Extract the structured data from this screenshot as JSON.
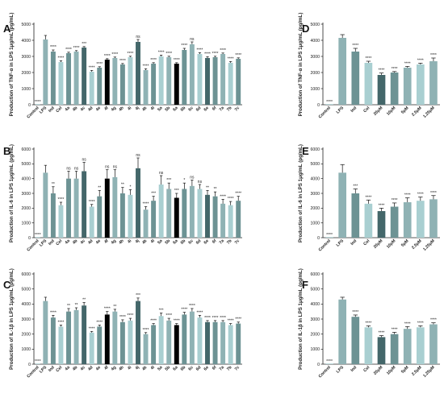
{
  "colors": {
    "lightest": "#a9cfd1",
    "light": "#8fb2b4",
    "mid": "#6d9394",
    "dark": "#44676a",
    "black": "#000000"
  },
  "chart_data": [
    {
      "panel": "A",
      "type": "bar",
      "ylabel": "Production of TNF-α in LPS 1μg/mL (pg/mL)",
      "ylim": [
        0,
        5000
      ],
      "yticks": [
        0,
        1000,
        2000,
        3000,
        4000,
        5000
      ],
      "categories": [
        "Control",
        "LPS",
        "Ind",
        "Cel",
        "4a",
        "4b",
        "4c",
        "4d",
        "4e",
        "4f",
        "4g",
        "4h",
        "4i",
        "4j",
        "4k",
        "4l",
        "5a",
        "5b",
        "6a",
        "6b",
        "6c",
        "6d",
        "6e",
        "6f",
        "7a",
        "7b",
        "7c"
      ],
      "values": [
        0,
        4050,
        3300,
        2650,
        3200,
        3300,
        3550,
        2050,
        2300,
        2800,
        2900,
        2500,
        2950,
        3900,
        2150,
        2550,
        3000,
        2950,
        2550,
        3400,
        3750,
        3150,
        2900,
        2950,
        3150,
        2600,
        2850
      ],
      "errors": [
        0,
        250,
        100,
        80,
        60,
        60,
        60,
        80,
        60,
        60,
        60,
        60,
        60,
        150,
        80,
        60,
        80,
        60,
        60,
        100,
        150,
        80,
        80,
        60,
        60,
        80,
        60
      ],
      "significance": [
        "****",
        "",
        "****",
        "****",
        "****",
        "****",
        "***",
        "****",
        "****",
        "****",
        "****",
        "****",
        "****",
        "ns",
        "****",
        "****",
        "****",
        "****",
        "****",
        "****",
        "ns",
        "****",
        "****",
        "****",
        "****",
        "****",
        "****"
      ]
    },
    {
      "panel": "B",
      "type": "bar",
      "ylabel": "Production of IL-6 in LPS 1μg/mL (pg/mL)",
      "ylim": [
        0,
        6000
      ],
      "yticks": [
        0,
        1000,
        2000,
        3000,
        4000,
        5000,
        6000
      ],
      "categories": [
        "Control",
        "LPS",
        "Ind",
        "Cel",
        "4a",
        "4b",
        "4c",
        "4d",
        "4e",
        "4f",
        "4g",
        "4h",
        "4i",
        "4j",
        "4k",
        "4l",
        "5a",
        "5b",
        "6a",
        "6b",
        "6c",
        "6d",
        "6e",
        "6f",
        "7a",
        "7b",
        "7c"
      ],
      "values": [
        0,
        4400,
        3000,
        2200,
        4000,
        4000,
        4500,
        2100,
        2800,
        4000,
        4100,
        3000,
        2900,
        4700,
        1900,
        2500,
        3600,
        3300,
        2700,
        3300,
        3500,
        3300,
        2900,
        2800,
        2300,
        2200,
        2500
      ],
      "errors": [
        0,
        500,
        450,
        200,
        500,
        500,
        600,
        150,
        400,
        600,
        500,
        400,
        350,
        700,
        200,
        300,
        600,
        400,
        300,
        400,
        400,
        300,
        300,
        300,
        300,
        250,
        300
      ],
      "significance": [
        "****",
        "",
        "**",
        "****",
        "ns",
        "ns",
        "ns",
        "****",
        "**",
        "ns",
        "ns",
        "**",
        "*",
        "ns",
        "****",
        "***",
        "ns",
        "***",
        "***",
        "*",
        "ns",
        "ns",
        "**",
        "**",
        "****",
        "****",
        "****"
      ]
    },
    {
      "panel": "C",
      "type": "bar",
      "ylabel": "Production of IL-1β in LPS 1μg/mL (pg/mL)",
      "ylim": [
        0,
        6000
      ],
      "yticks": [
        0,
        1000,
        2000,
        3000,
        4000,
        5000,
        6000
      ],
      "categories": [
        "Control",
        "LPS",
        "Ind",
        "Cel",
        "4a",
        "4b",
        "4c",
        "4d",
        "4e",
        "4f",
        "4g",
        "4h",
        "4i",
        "4j",
        "4k",
        "4l",
        "5a",
        "5b",
        "6a",
        "6b",
        "6c",
        "6d",
        "6e",
        "6f",
        "7a",
        "7b",
        "7c"
      ],
      "values": [
        0,
        4200,
        3100,
        2500,
        3500,
        3600,
        3900,
        2100,
        2500,
        3300,
        3500,
        2800,
        2900,
        4200,
        2000,
        2600,
        3200,
        2900,
        2600,
        3300,
        3500,
        3100,
        2800,
        2800,
        2800,
        2600,
        2700
      ],
      "errors": [
        0,
        250,
        150,
        100,
        200,
        150,
        200,
        80,
        100,
        200,
        150,
        150,
        150,
        200,
        100,
        100,
        200,
        150,
        100,
        150,
        200,
        150,
        100,
        100,
        100,
        100,
        100
      ],
      "significance": [
        "****",
        "",
        "****",
        "****",
        "**",
        "**",
        "**",
        "****",
        "****",
        "****",
        "**",
        "****",
        "****",
        "***",
        "****",
        "****",
        "***",
        "****",
        "****",
        "****",
        "****",
        "****",
        "****",
        "****",
        "****",
        "****",
        "****"
      ]
    },
    {
      "panel": "D",
      "type": "bar",
      "ylabel": "Production of TNF-α in LPS 1μg/mL (pg/mL)",
      "ylim": [
        0,
        5000
      ],
      "yticks": [
        0,
        1000,
        2000,
        3000,
        4000,
        5000
      ],
      "categories": [
        "Control",
        "LPS",
        "Ind",
        "Cel",
        "20μM",
        "10μM",
        "5μM",
        "2.5μM",
        "1.25μM"
      ],
      "values": [
        0,
        4150,
        3300,
        2600,
        1850,
        2000,
        2300,
        2500,
        2700
      ],
      "errors": [
        0,
        200,
        200,
        100,
        120,
        60,
        80,
        80,
        200
      ],
      "significance": [
        "****",
        "",
        "****",
        "****",
        "****",
        "****",
        "****",
        "****",
        "****"
      ]
    },
    {
      "panel": "E",
      "type": "bar",
      "ylabel": "Production of IL-6 in LPS 1μg/mL (pg/mL)",
      "ylim": [
        0,
        6000
      ],
      "yticks": [
        0,
        1000,
        2000,
        3000,
        4000,
        5000,
        6000
      ],
      "categories": [
        "Control",
        "LPS",
        "Ind",
        "Cel",
        "20μM",
        "10μM",
        "5μM",
        "2.5μM",
        "1.25μM"
      ],
      "values": [
        0,
        4400,
        3000,
        2300,
        1800,
        2100,
        2400,
        2500,
        2600
      ],
      "errors": [
        0,
        550,
        300,
        250,
        200,
        250,
        300,
        250,
        250
      ],
      "significance": [
        "****",
        "",
        "***",
        "****",
        "****",
        "****",
        "****",
        "****",
        "****"
      ]
    },
    {
      "panel": "F",
      "type": "bar",
      "ylabel": "Production of IL-1β in LPS 1μg/mL (pg/mL)",
      "ylim": [
        0,
        6000
      ],
      "yticks": [
        0,
        1000,
        2000,
        3000,
        4000,
        5000,
        6000
      ],
      "categories": [
        "Control",
        "LPS",
        "Ind",
        "Cel",
        "20μM",
        "10μM",
        "5μM",
        "2.5μM",
        "1.25μM"
      ],
      "values": [
        0,
        4300,
        3150,
        2450,
        1800,
        2000,
        2350,
        2450,
        2650
      ],
      "errors": [
        0,
        150,
        120,
        100,
        100,
        120,
        150,
        100,
        100
      ],
      "significance": [
        "****",
        "",
        "****",
        "****",
        "****",
        "****",
        "****",
        "****",
        "****"
      ]
    }
  ]
}
